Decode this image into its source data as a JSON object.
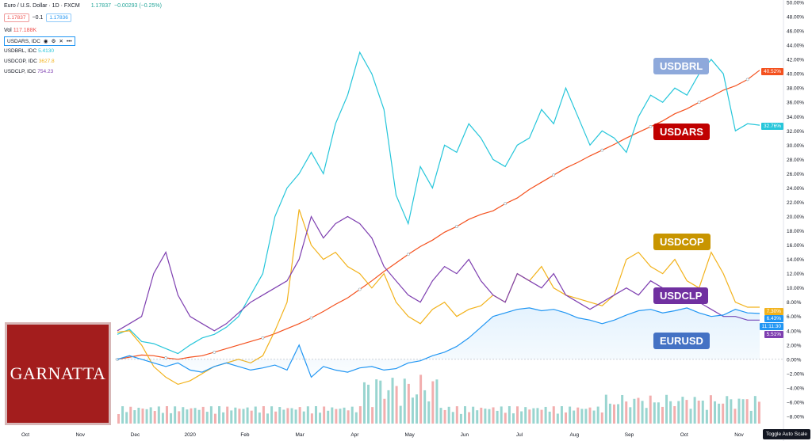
{
  "header": {
    "title": "Euro / U.S. Dollar · 1D · FXCM",
    "price": "1.17837",
    "change": "−0.00293 (−0.25%)",
    "bid": "1.17837",
    "spread": "−0.1",
    "ask": "1.17836",
    "vol_label": "Vol",
    "vol_value": "117.188K"
  },
  "indicators": [
    {
      "name": "USDARS, IDC",
      "value": ""
    },
    {
      "name": "USDBRL, IDC",
      "value": "5.4130",
      "color": "#26c6da"
    },
    {
      "name": "USDCOP, IDC",
      "value": "3627.8",
      "color": "#f2b21b"
    },
    {
      "name": "USDCLP, IDC",
      "value": "754.23",
      "color": "#7e3fb0"
    }
  ],
  "tags": [
    {
      "label": "USDBRL",
      "color": "#8ea9db"
    },
    {
      "label": "USDARS",
      "color": "#c00000"
    },
    {
      "label": "USDCOP",
      "color": "#c89500"
    },
    {
      "label": "USDCLP",
      "color": "#7030a0"
    },
    {
      "label": "EURUSD",
      "color": "#4472c4"
    }
  ],
  "price_tags": [
    {
      "text": "40.52%",
      "color": "#f4511e"
    },
    {
      "text": "32.76%",
      "color": "#26c6da"
    },
    {
      "text": "7.30%",
      "color": "#f2b21b"
    },
    {
      "text": "6.43%",
      "color": "#2196f3"
    },
    {
      "text": "11:11:30",
      "color": "#2196f3"
    },
    {
      "text": "5.51%",
      "color": "#7e3fb0"
    }
  ],
  "logo_text": "GARNATTA",
  "toggle_label": "Toggle Auto Scale",
  "chart_data": {
    "type": "line",
    "y_axis_unit": "%",
    "y_ticks": [
      "50.00%",
      "48.00%",
      "46.00%",
      "44.00%",
      "42.00%",
      "40.00%",
      "38.00%",
      "36.00%",
      "34.00%",
      "32.00%",
      "30.00%",
      "28.00%",
      "26.00%",
      "24.00%",
      "22.00%",
      "20.00%",
      "18.00%",
      "16.00%",
      "14.00%",
      "12.00%",
      "10.00%",
      "8.00%",
      "6.00%",
      "4.00%",
      "2.00%",
      "0.00%",
      "−2.00%",
      "−4.00%",
      "−6.00%",
      "−8.00%"
    ],
    "ylim": [
      -9,
      50
    ],
    "x_ticks": [
      "Oct",
      "Nov",
      "Dec",
      "2020",
      "Feb",
      "Mar",
      "Apr",
      "May",
      "Jun",
      "Jul",
      "Aug",
      "Sep",
      "Oct",
      "Nov"
    ],
    "series": [
      {
        "name": "USDARS",
        "color": "#f4511e",
        "values": [
          0,
          0.3,
          0.6,
          0.5,
          0.2,
          0.0,
          0.3,
          0.5,
          1.0,
          1.5,
          2.0,
          2.5,
          3.0,
          3.6,
          4.3,
          5.0,
          5.8,
          6.7,
          7.7,
          8.6,
          9.8,
          11.0,
          12.3,
          13.5,
          14.7,
          15.8,
          16.7,
          17.8,
          18.6,
          19.6,
          20.3,
          20.8,
          21.8,
          22.6,
          23.8,
          24.8,
          25.8,
          26.8,
          27.6,
          28.5,
          29.3,
          30.1,
          31.0,
          31.8,
          32.6,
          33.4,
          34.4,
          35.1,
          36.0,
          36.8,
          37.7,
          38.3,
          39.2,
          40.5
        ]
      },
      {
        "name": "USDBRL",
        "color": "#26c6da",
        "values": [
          3.5,
          4.2,
          2.5,
          2.2,
          1.5,
          0.8,
          2.0,
          3.0,
          3.5,
          4.5,
          6.0,
          9.0,
          12.0,
          20.0,
          24.0,
          26.0,
          29.0,
          26.0,
          33.0,
          37.0,
          43.0,
          40.0,
          35.0,
          23.0,
          19.0,
          27.0,
          24.0,
          30.0,
          29.0,
          33.0,
          31.0,
          28.0,
          27.0,
          30.0,
          31.0,
          35.0,
          33.0,
          38.0,
          34.0,
          30.0,
          32.0,
          31.0,
          29.0,
          34.0,
          37.0,
          36.0,
          38.0,
          37.0,
          40.0,
          42.0,
          40.0,
          32.0,
          33.0,
          32.8
        ]
      },
      {
        "name": "USDCOP",
        "color": "#f2b21b",
        "values": [
          3.8,
          4.0,
          2.0,
          -1.0,
          -2.5,
          -3.5,
          -3.0,
          -2.0,
          -1.0,
          -0.5,
          0.0,
          -0.5,
          0.5,
          4.0,
          8.0,
          21.0,
          16.0,
          14.0,
          15.0,
          13.0,
          12.0,
          10.0,
          12.0,
          8.0,
          6.0,
          5.0,
          7.0,
          8.0,
          6.0,
          7.0,
          7.5,
          9.0,
          8.0,
          12.0,
          11.0,
          13.0,
          10.0,
          9.0,
          8.5,
          8.0,
          7.5,
          9.0,
          14.0,
          15.0,
          13.0,
          12.0,
          14.0,
          11.0,
          10.0,
          15.0,
          12.0,
          8.0,
          7.3,
          7.3
        ]
      },
      {
        "name": "USDCLP",
        "color": "#7e3fb0",
        "values": [
          4.0,
          5.0,
          6.0,
          12.0,
          15.0,
          9.0,
          6.0,
          5.0,
          4.0,
          5.0,
          6.5,
          8.0,
          9.0,
          10.0,
          11.0,
          14.0,
          20.0,
          17.0,
          19.0,
          20.0,
          19.0,
          17.0,
          13.0,
          11.0,
          9.0,
          8.0,
          11.0,
          13.0,
          12.0,
          14.0,
          11.0,
          9.0,
          8.0,
          12.0,
          11.0,
          10.0,
          12.0,
          9.0,
          8.0,
          7.0,
          8.0,
          9.0,
          10.0,
          9.0,
          11.0,
          10.0,
          9.0,
          10.0,
          8.0,
          7.0,
          6.0,
          6.0,
          5.5,
          5.5
        ]
      },
      {
        "name": "EURUSD",
        "color": "#2196f3",
        "values": [
          0.0,
          0.5,
          0.0,
          -0.5,
          -1.0,
          -0.5,
          -1.5,
          -1.8,
          -1.0,
          -0.5,
          -1.0,
          -1.5,
          -1.2,
          -0.8,
          -1.5,
          2.0,
          -2.5,
          -1.0,
          -1.5,
          -1.8,
          -1.2,
          -1.0,
          -1.5,
          -1.3,
          -0.5,
          -0.2,
          0.5,
          1.0,
          1.8,
          3.0,
          4.5,
          6.0,
          6.5,
          7.0,
          7.2,
          6.8,
          7.0,
          6.5,
          5.8,
          5.5,
          5.0,
          5.5,
          6.2,
          6.8,
          7.0,
          6.5,
          6.8,
          7.2,
          6.5,
          6.0,
          6.2,
          7.0,
          6.5,
          6.43
        ]
      }
    ]
  }
}
